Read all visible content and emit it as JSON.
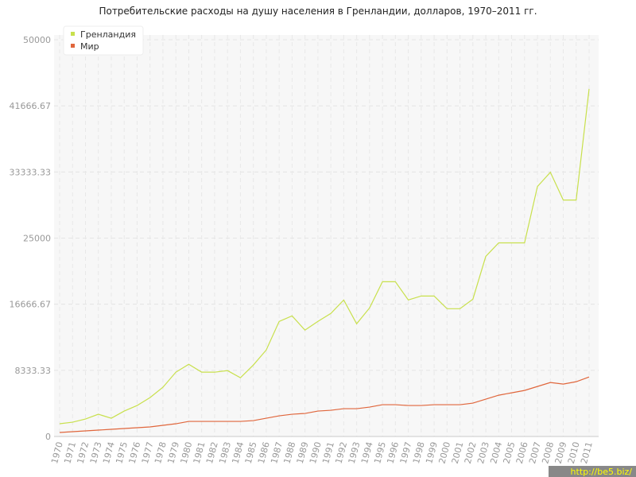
{
  "chart_data": {
    "type": "line",
    "title": "Потребительские расходы на душу населения в Гренландии, долларов, 1970–2011 гг.",
    "categories": [
      "1970",
      "1971",
      "1972",
      "1973",
      "1974",
      "1975",
      "1976",
      "1977",
      "1978",
      "1979",
      "1980",
      "1981",
      "1982",
      "1983",
      "1984",
      "1985",
      "1986",
      "1987",
      "1988",
      "1989",
      "1990",
      "1991",
      "1992",
      "1993",
      "1994",
      "1995",
      "1996",
      "1997",
      "1998",
      "1999",
      "2000",
      "2001",
      "2002",
      "2003",
      "2004",
      "2005",
      "2006",
      "2007",
      "2008",
      "2009",
      "2010",
      "2011"
    ],
    "series": [
      {
        "name": "Гренландия",
        "color": "#c8e04c",
        "values": [
          1600,
          1800,
          2200,
          2800,
          2300,
          3200,
          3900,
          4900,
          6200,
          8100,
          9100,
          8100,
          8100,
          8300,
          7400,
          9000,
          10900,
          14500,
          15200,
          13400,
          14500,
          15500,
          17200,
          14200,
          16200,
          19500,
          19500,
          17200,
          17700,
          17700,
          16100,
          16100,
          17300,
          22700,
          24400,
          24400,
          24400,
          31500,
          33300,
          29800,
          29800,
          43800
        ]
      },
      {
        "name": "Мир",
        "color": "#e0663c",
        "values": [
          500,
          600,
          700,
          800,
          900,
          1000,
          1100,
          1200,
          1400,
          1600,
          1900,
          1900,
          1900,
          1900,
          1900,
          2000,
          2300,
          2600,
          2800,
          2900,
          3200,
          3300,
          3500,
          3500,
          3700,
          4000,
          4000,
          3900,
          3900,
          4000,
          4000,
          4000,
          4200,
          4700,
          5200,
          5500,
          5800,
          6300,
          6800,
          6600,
          6900,
          7500
        ]
      }
    ],
    "ylim": [
      0,
      50000
    ],
    "yticks": [
      0,
      8333.33,
      16666.67,
      25000,
      33333.33,
      41666.67,
      50000
    ],
    "grid": true,
    "legend": "top-left",
    "watermark": "http://be5.biz/"
  }
}
